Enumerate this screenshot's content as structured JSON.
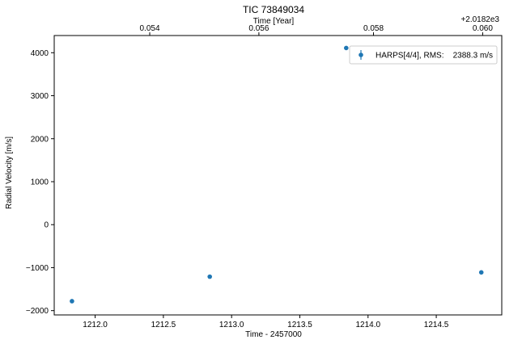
{
  "chart_data": {
    "type": "scatter",
    "title": "TIC 73849034",
    "xlabel": "Time - 2457000",
    "ylabel": "Radial Velocity [m/s]",
    "top_xlabel": "Time [Year]",
    "top_offset_label": "+2.0182e3",
    "xlim": [
      1211.7,
      1214.98
    ],
    "ylim": [
      -2100,
      4400
    ],
    "xticks": [
      1212.0,
      1212.5,
      1213.0,
      1213.5,
      1214.0,
      1214.5
    ],
    "xtick_labels": [
      "1212.0",
      "1212.5",
      "1213.0",
      "1213.5",
      "1214.0",
      "1214.5"
    ],
    "yticks": [
      -2000,
      -1000,
      0,
      1000,
      2000,
      3000,
      4000
    ],
    "ytick_labels": [
      "−2000",
      "−1000",
      "0",
      "1000",
      "2000",
      "3000",
      "4000"
    ],
    "top_ticks": [
      {
        "x": 1212.4,
        "label": "0.054"
      },
      {
        "x": 1213.2,
        "label": "0.056"
      },
      {
        "x": 1214.04,
        "label": "0.058"
      },
      {
        "x": 1214.84,
        "label": "0.060"
      }
    ],
    "grid": false,
    "legend_position": "upper-right",
    "series": [
      {
        "name": "HARPS[4/4], RMS:    2388.3 m/s",
        "color": "#1f77b4",
        "marker": "circle",
        "x": [
          1211.83,
          1212.84,
          1213.84,
          1214.83
        ],
        "y": [
          -1780,
          -1210,
          4110,
          -1110
        ]
      }
    ]
  }
}
